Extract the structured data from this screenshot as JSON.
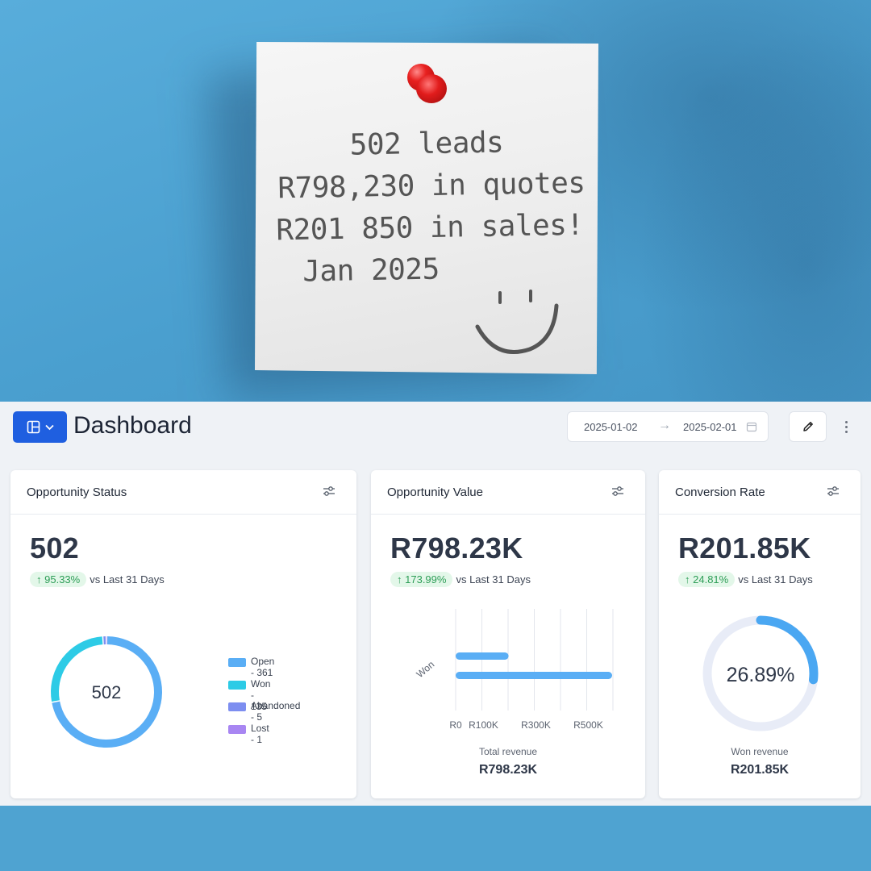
{
  "note": {
    "lines": [
      "502 leads",
      "R798,230 in quotes",
      "R201 850 in sales!",
      "Jan 2025"
    ]
  },
  "header": {
    "title": "Dashboard",
    "date_from": "2025-01-02",
    "date_to": "2025-02-01"
  },
  "cards": {
    "status": {
      "title": "Opportunity Status",
      "value": "502",
      "change": "95.33%",
      "vs": "vs Last 31 Days",
      "donut_center": "502",
      "legend": [
        {
          "label": "Open - 361",
          "color": "#5aaef5"
        },
        {
          "label": "Won - 135",
          "color": "#2dcbe6"
        },
        {
          "label": "Abandoned - 5",
          "color": "#7d8ef0"
        },
        {
          "label": "Lost - 1",
          "color": "#a886f2"
        }
      ]
    },
    "value": {
      "title": "Opportunity Value",
      "value": "R798.23K",
      "change": "173.99%",
      "vs": "vs Last 31 Days",
      "category_label": "Won",
      "ticks": [
        "R0",
        "R100K",
        "R300K",
        "R500K"
      ],
      "total_label": "Total revenue",
      "total_value": "R798.23K"
    },
    "conversion": {
      "title": "Conversion Rate",
      "value": "R201.85K",
      "change": "24.81%",
      "vs": "vs Last 31 Days",
      "rate": "26.89%",
      "won_label": "Won revenue",
      "won_value": "R201.85K"
    }
  },
  "chart_data": [
    {
      "type": "pie",
      "categories": [
        "Open",
        "Won",
        "Abandoned",
        "Lost"
      ],
      "values": [
        361,
        135,
        5,
        1
      ],
      "colors": [
        "#5aaef5",
        "#2dcbe6",
        "#7d8ef0",
        "#a886f2"
      ],
      "center_label": "502"
    },
    {
      "type": "bar",
      "orientation": "horizontal",
      "categories": [
        "Won"
      ],
      "series": [
        {
          "values": [
            201850
          ],
          "color": "#5aaef5"
        },
        {
          "values": [
            798230
          ],
          "color": "#5aaef5"
        }
      ],
      "xticks": [
        "R0",
        "R100K",
        "R300K",
        "R500K"
      ]
    },
    {
      "type": "pie",
      "categories": [
        "Won revenue"
      ],
      "values": [
        26.89
      ],
      "unit": "%",
      "colors": [
        "#4aa7f2",
        "#e8ecf7"
      ]
    }
  ]
}
